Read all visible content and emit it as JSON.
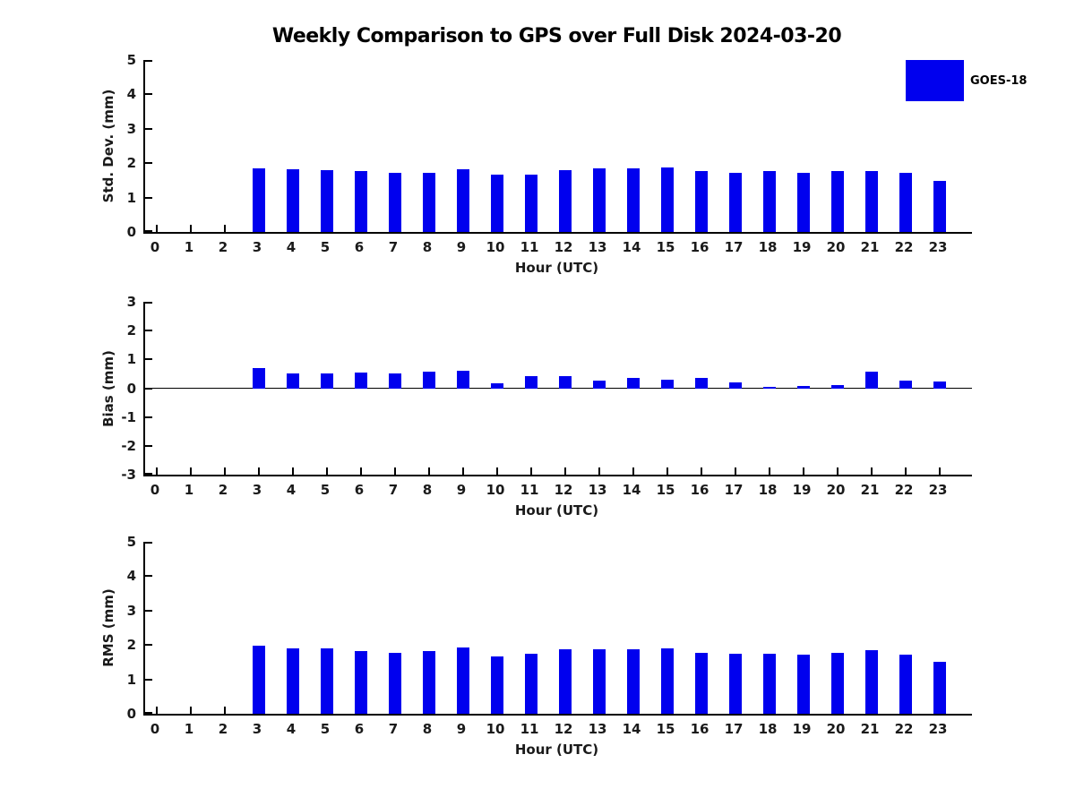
{
  "figure": {
    "title": "Weekly Comparison to GPS over Full Disk 2024-03-20",
    "background": "#ffffff"
  },
  "legend": {
    "label": "GOES-18",
    "swatch_color": "#0000ee",
    "position": "top-right-outside-axes"
  },
  "colors": {
    "bar": "#0000ee",
    "axis": "#000000",
    "text": "#1a1a1a",
    "title": "#000000"
  },
  "chart_data": [
    {
      "type": "bar",
      "name": "std-dev",
      "ylabel": "Std. Dev. (mm)",
      "xlabel": "Hour (UTC)",
      "ylim": [
        0,
        5
      ],
      "yticks": [
        0,
        1,
        2,
        3,
        4,
        5
      ],
      "categories": [
        "0",
        "1",
        "2",
        "3",
        "4",
        "5",
        "6",
        "7",
        "8",
        "9",
        "10",
        "11",
        "12",
        "13",
        "14",
        "15",
        "16",
        "17",
        "18",
        "19",
        "20",
        "21",
        "22",
        "23"
      ],
      "series": [
        {
          "name": "GOES-18",
          "values": [
            null,
            null,
            null,
            1.85,
            1.83,
            1.8,
            1.76,
            1.71,
            1.71,
            1.83,
            1.66,
            1.68,
            1.8,
            1.85,
            1.86,
            1.88,
            1.76,
            1.73,
            1.76,
            1.71,
            1.76,
            1.76,
            1.71,
            1.48
          ]
        }
      ],
      "grid": false,
      "zero_line": false
    },
    {
      "type": "bar",
      "name": "bias",
      "ylabel": "Bias (mm)",
      "xlabel": "Hour (UTC)",
      "ylim": [
        -3,
        3
      ],
      "yticks": [
        -3,
        -2,
        -1,
        0,
        1,
        2,
        3
      ],
      "categories": [
        "0",
        "1",
        "2",
        "3",
        "4",
        "5",
        "6",
        "7",
        "8",
        "9",
        "10",
        "11",
        "12",
        "13",
        "14",
        "15",
        "16",
        "17",
        "18",
        "19",
        "20",
        "21",
        "22",
        "23"
      ],
      "series": [
        {
          "name": "GOES-18",
          "values": [
            null,
            null,
            null,
            0.7,
            0.51,
            0.51,
            0.55,
            0.51,
            0.57,
            0.61,
            0.17,
            0.43,
            0.43,
            0.27,
            0.37,
            0.3,
            0.36,
            0.21,
            0.04,
            0.08,
            0.11,
            0.58,
            0.27,
            0.23
          ]
        }
      ],
      "grid": false,
      "zero_line": true
    },
    {
      "type": "bar",
      "name": "rms",
      "ylabel": "RMS (mm)",
      "xlabel": "Hour (UTC)",
      "ylim": [
        0,
        5
      ],
      "yticks": [
        0,
        1,
        2,
        3,
        4,
        5
      ],
      "categories": [
        "0",
        "1",
        "2",
        "3",
        "4",
        "5",
        "6",
        "7",
        "8",
        "9",
        "10",
        "11",
        "12",
        "13",
        "14",
        "15",
        "16",
        "17",
        "18",
        "19",
        "20",
        "21",
        "22",
        "23"
      ],
      "series": [
        {
          "name": "GOES-18",
          "values": [
            null,
            null,
            null,
            1.98,
            1.91,
            1.89,
            1.83,
            1.78,
            1.82,
            1.93,
            1.67,
            1.74,
            1.88,
            1.88,
            1.88,
            1.91,
            1.78,
            1.75,
            1.75,
            1.72,
            1.77,
            1.85,
            1.72,
            1.5
          ]
        }
      ],
      "grid": false,
      "zero_line": false
    }
  ]
}
